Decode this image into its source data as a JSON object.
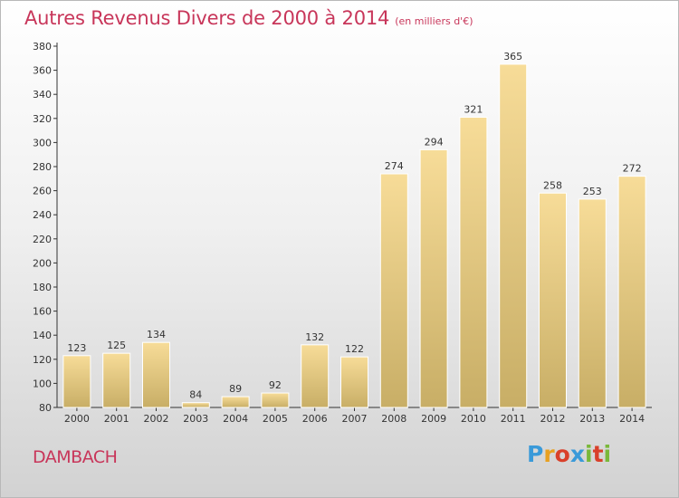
{
  "title": "Autres Revenus Divers de 2000 à 2014",
  "subtitle": "(en milliers d'€)",
  "commune": "DAMBACH",
  "logo": {
    "letters": [
      "P",
      "r",
      "o",
      "x",
      "i",
      "t",
      "i"
    ],
    "colors": [
      "#3a9ad9",
      "#e8a020",
      "#d9402a",
      "#3a9ad9",
      "#7ab83a",
      "#d9402a",
      "#7ab83a"
    ]
  },
  "colors": {
    "title": "#c8365a",
    "bar_light": "#f7dc98",
    "bar_dark": "#c8ae66"
  },
  "chart_data": {
    "type": "bar",
    "categories": [
      "2000",
      "2001",
      "2002",
      "2003",
      "2004",
      "2005",
      "2006",
      "2007",
      "2008",
      "2009",
      "2010",
      "2011",
      "2012",
      "2013",
      "2014"
    ],
    "values": [
      123,
      125,
      134,
      84,
      89,
      92,
      132,
      122,
      274,
      294,
      321,
      365,
      258,
      253,
      272
    ],
    "y_ticks": [
      "80",
      "100",
      "120",
      "140",
      "160",
      "180",
      "200",
      "220",
      "240",
      "260",
      "280",
      "300",
      "320",
      "340",
      "360",
      "380"
    ],
    "ylim": [
      80,
      380
    ],
    "grid": false
  }
}
